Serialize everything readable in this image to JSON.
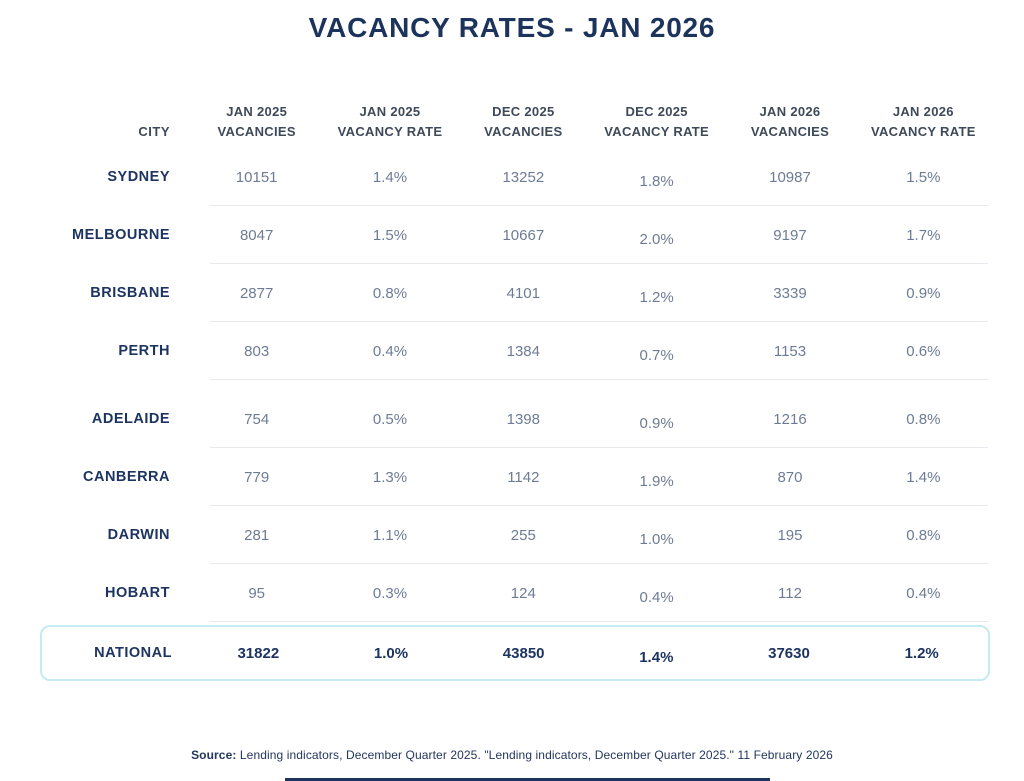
{
  "title": "VACANCY RATES - JAN 2026",
  "chart_data": {
    "type": "table",
    "title": "VACANCY RATES - JAN 2026",
    "columns": [
      {
        "line1": "",
        "line2": "CITY"
      },
      {
        "line1": "JAN 2025",
        "line2": "VACANCIES"
      },
      {
        "line1": "JAN 2025",
        "line2": "VACANCY RATE"
      },
      {
        "line1": "DEC 2025",
        "line2": "VACANCIES"
      },
      {
        "line1": "DEC 2025",
        "line2": "VACANCY RATE"
      },
      {
        "line1": "JAN 2026",
        "line2": "VACANCIES"
      },
      {
        "line1": "JAN 2026",
        "line2": "VACANCY RATE"
      }
    ],
    "rows": [
      {
        "city": "SYDNEY",
        "values": [
          "10151",
          "1.4%",
          "13252",
          "1.8%",
          "10987",
          "1.5%"
        ]
      },
      {
        "city": "MELBOURNE",
        "values": [
          "8047",
          "1.5%",
          "10667",
          "2.0%",
          "9197",
          "1.7%"
        ]
      },
      {
        "city": "BRISBANE",
        "values": [
          "2877",
          "0.8%",
          "4101",
          "1.2%",
          "3339",
          "0.9%"
        ]
      },
      {
        "city": "PERTH",
        "values": [
          "803",
          "0.4%",
          "1384",
          "0.7%",
          "1153",
          "0.6%"
        ]
      },
      {
        "city": "ADELAIDE",
        "values": [
          "754",
          "0.5%",
          "1398",
          "0.9%",
          "1216",
          "0.8%"
        ]
      },
      {
        "city": "CANBERRA",
        "values": [
          "779",
          "1.3%",
          "1142",
          "1.9%",
          "870",
          "1.4%"
        ]
      },
      {
        "city": "DARWIN",
        "values": [
          "281",
          "1.1%",
          "255",
          "1.0%",
          "195",
          "0.8%"
        ]
      },
      {
        "city": "HOBART",
        "values": [
          "95",
          "0.3%",
          "124",
          "0.4%",
          "112",
          "0.4%"
        ]
      }
    ],
    "national": {
      "city": "NATIONAL",
      "values": [
        "31822",
        "1.0%",
        "43850",
        "1.4%",
        "37630",
        "1.2%"
      ]
    }
  },
  "source": {
    "label": "Source:",
    "text": "Lending indicators, December Quarter 2025. \"Lending indicators, December Quarter 2025.\" 11 February 2026"
  },
  "colors": {
    "navy": "#1d3461",
    "title_navy": "#1c335c",
    "header_text": "#3e4959",
    "data_text": "#6e7b94",
    "national_border": "#c5eaf2",
    "row_divider": "#e6e9ee"
  }
}
